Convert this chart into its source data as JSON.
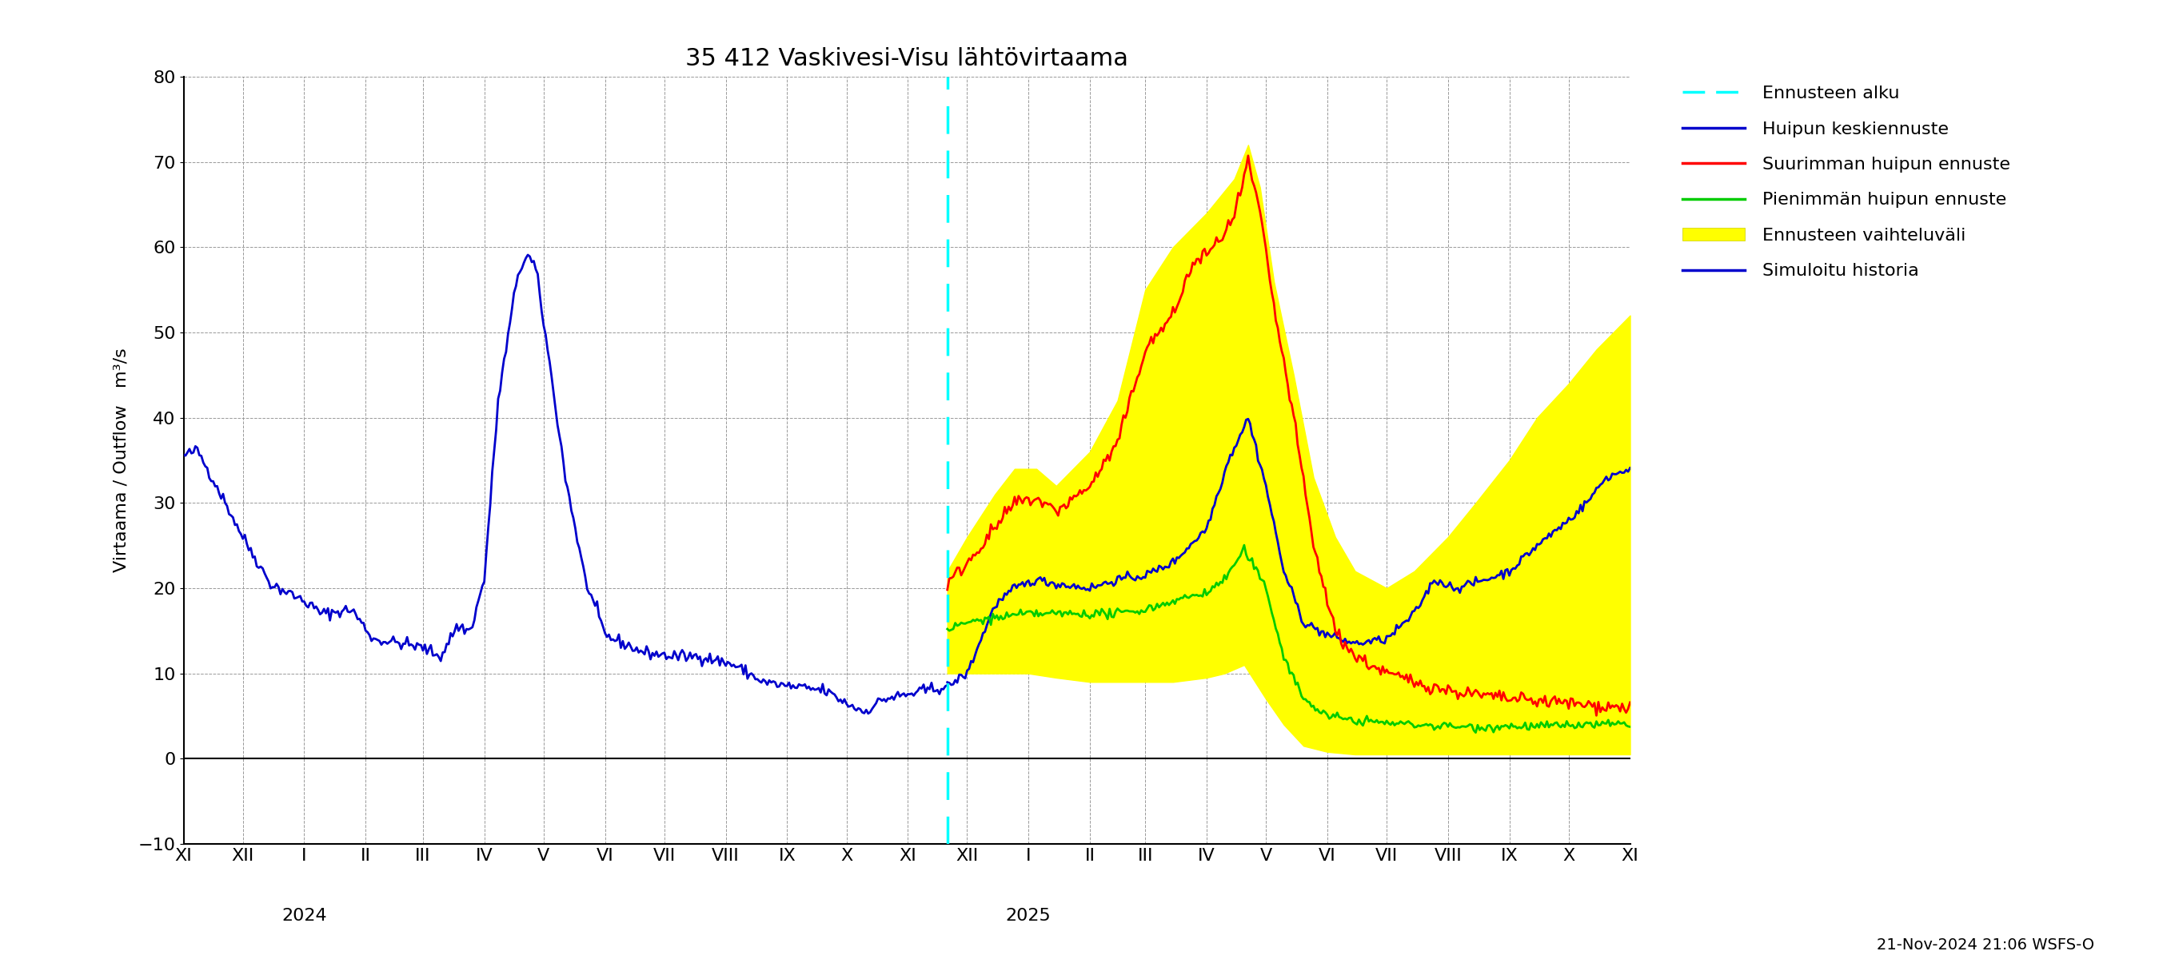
{
  "title": "35 412 Vaskivesi-Visu lähtövirtaama",
  "ylabel": "Virtaama / Outflow   m³/s",
  "ylim": [
    -10,
    80
  ],
  "yticks": [
    -10,
    0,
    10,
    20,
    30,
    40,
    50,
    60,
    70,
    80
  ],
  "footer": "21-Nov-2024 21:06 WSFS-O",
  "colors": {
    "history": "#0000cc",
    "cyan_dashed": "#00ffff",
    "red": "#ff0000",
    "green": "#00cc00",
    "yellow": "#ffff00",
    "blue_sim": "#0000cc"
  },
  "background_color": "#ffffff",
  "grid_color": "#aaaaaa"
}
